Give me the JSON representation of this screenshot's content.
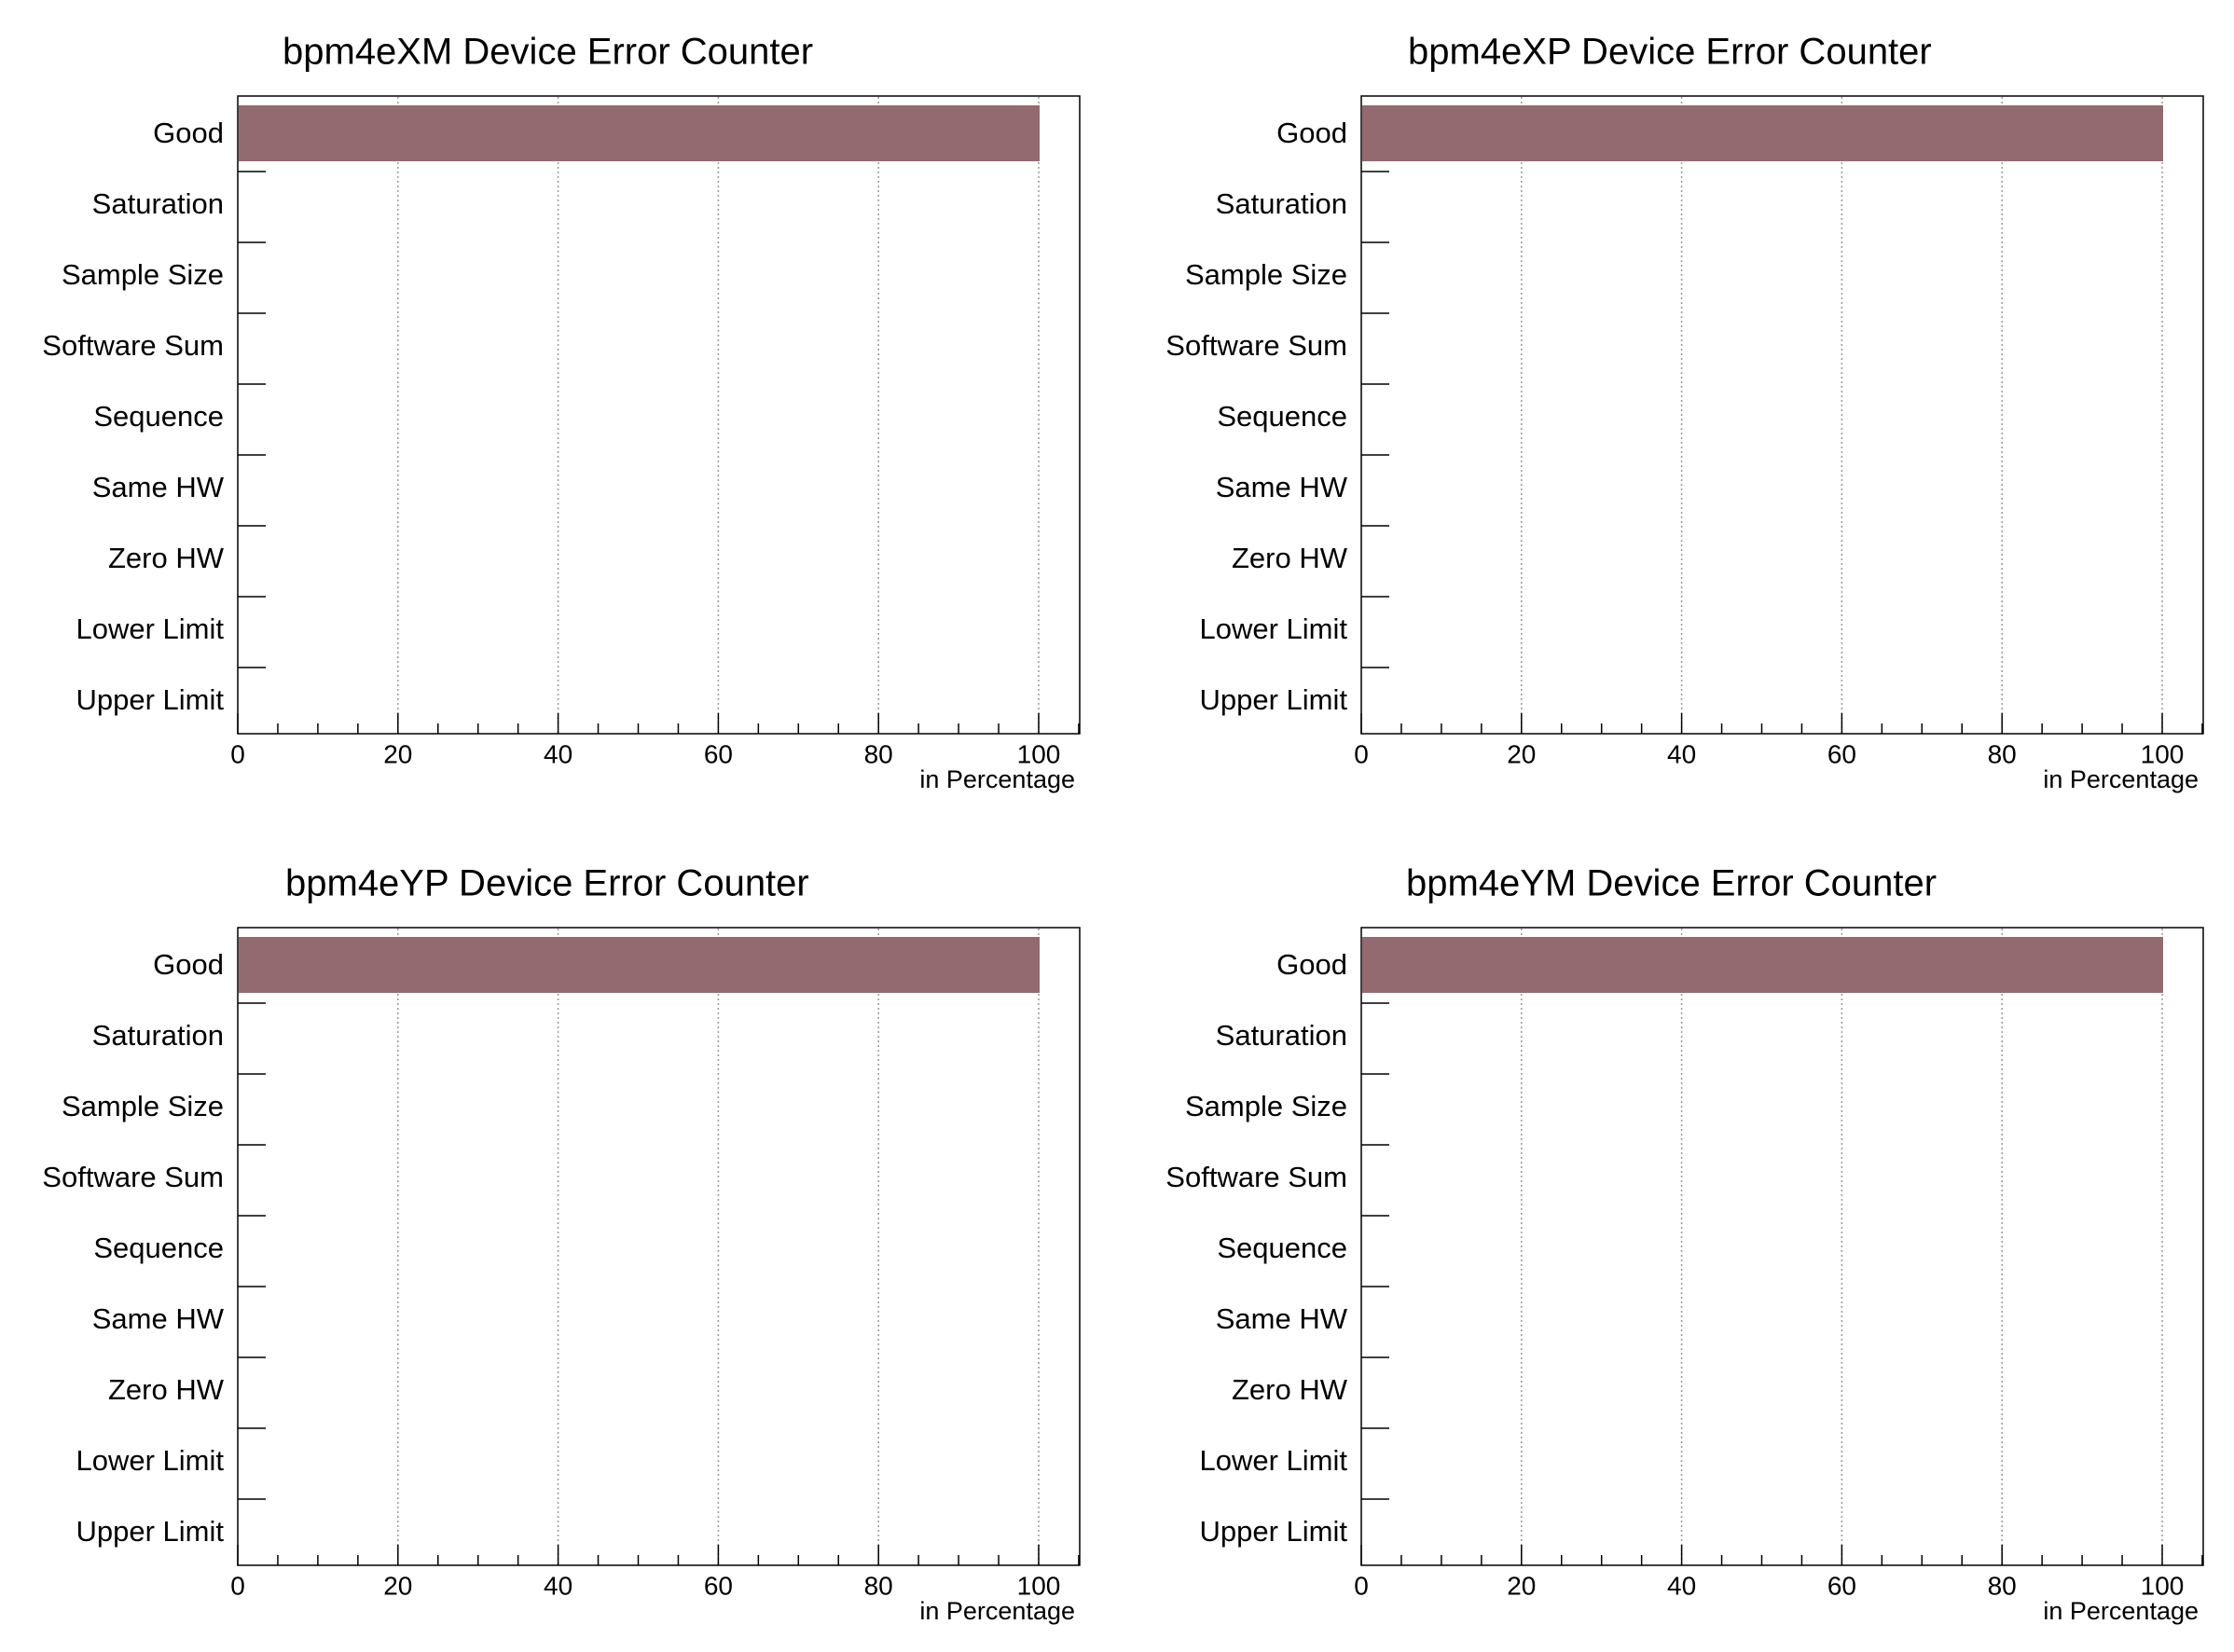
{
  "chart_data": [
    {
      "type": "bar",
      "orientation": "horizontal",
      "title": "bpm4eXM Device  Error Counter",
      "xlabel": "in Percentage",
      "categories": [
        "Good",
        "Saturation",
        "Sample Size",
        "Software Sum",
        "Sequence",
        "Same HW",
        "Zero HW",
        "Lower Limit",
        "Upper Limit"
      ],
      "values": [
        100,
        0,
        0,
        0,
        0,
        0,
        0,
        0,
        0
      ],
      "xlim": [
        0,
        105
      ],
      "xticks": [
        "0",
        "20",
        "40",
        "60",
        "80",
        "100"
      ],
      "grid": "vertical",
      "bar_color": "#936a6f"
    },
    {
      "type": "bar",
      "orientation": "horizontal",
      "title": "bpm4eXP Device  Error Counter",
      "xlabel": "in Percentage",
      "categories": [
        "Good",
        "Saturation",
        "Sample Size",
        "Software Sum",
        "Sequence",
        "Same HW",
        "Zero HW",
        "Lower Limit",
        "Upper Limit"
      ],
      "values": [
        100,
        0,
        0,
        0,
        0,
        0,
        0,
        0,
        0
      ],
      "xlim": [
        0,
        105
      ],
      "xticks": [
        "0",
        "20",
        "40",
        "60",
        "80",
        "100"
      ],
      "grid": "vertical",
      "bar_color": "#936a6f"
    },
    {
      "type": "bar",
      "orientation": "horizontal",
      "title": "bpm4eYP Device  Error Counter",
      "xlabel": "in Percentage",
      "categories": [
        "Good",
        "Saturation",
        "Sample Size",
        "Software Sum",
        "Sequence",
        "Same HW",
        "Zero HW",
        "Lower Limit",
        "Upper Limit"
      ],
      "values": [
        100,
        0,
        0,
        0,
        0,
        0,
        0,
        0,
        0
      ],
      "xlim": [
        0,
        105
      ],
      "xticks": [
        "0",
        "20",
        "40",
        "60",
        "80",
        "100"
      ],
      "grid": "vertical",
      "bar_color": "#936a6f"
    },
    {
      "type": "bar",
      "orientation": "horizontal",
      "title": "bpm4eYM Device  Error Counter",
      "xlabel": "in Percentage",
      "categories": [
        "Good",
        "Saturation",
        "Sample Size",
        "Software Sum",
        "Sequence",
        "Same HW",
        "Zero HW",
        "Lower Limit",
        "Upper Limit"
      ],
      "values": [
        100,
        0,
        0,
        0,
        0,
        0,
        0,
        0,
        0
      ],
      "xlim": [
        0,
        105
      ],
      "xticks": [
        "0",
        "20",
        "40",
        "60",
        "80",
        "100"
      ],
      "grid": "vertical",
      "bar_color": "#936a6f"
    }
  ]
}
